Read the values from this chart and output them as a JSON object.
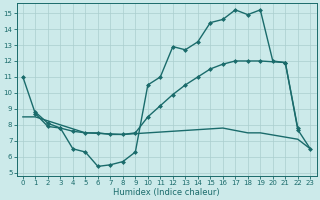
{
  "xlabel": "Humidex (Indice chaleur)",
  "bg_color": "#cceaea",
  "grid_color": "#aacece",
  "line_color": "#1a6b6b",
  "xlim": [
    -0.5,
    23.5
  ],
  "ylim": [
    4.8,
    15.6
  ],
  "xticks": [
    0,
    1,
    2,
    3,
    4,
    5,
    6,
    7,
    8,
    9,
    10,
    11,
    12,
    13,
    14,
    15,
    16,
    17,
    18,
    19,
    20,
    21,
    22,
    23
  ],
  "yticks": [
    5,
    6,
    7,
    8,
    9,
    10,
    11,
    12,
    13,
    14,
    15
  ],
  "curve1_x": [
    0,
    1,
    2,
    3,
    4,
    5,
    6,
    7,
    8,
    9,
    10,
    11,
    12,
    13,
    14,
    15,
    16,
    17,
    18,
    19,
    20,
    21,
    22
  ],
  "curve1_y": [
    11,
    8.7,
    7.9,
    7.8,
    6.5,
    6.3,
    5.4,
    5.5,
    5.7,
    6.3,
    10.5,
    11.0,
    12.9,
    12.7,
    13.2,
    14.4,
    14.6,
    15.2,
    14.9,
    15.2,
    12.0,
    11.9,
    7.8
  ],
  "curve2_x": [
    1,
    2,
    3,
    4,
    5,
    6,
    7,
    8,
    9,
    10,
    11,
    12,
    13,
    14,
    15,
    16,
    17,
    18,
    19,
    21,
    22,
    23
  ],
  "curve2_y": [
    8.8,
    8.1,
    7.8,
    7.6,
    7.5,
    7.5,
    7.4,
    7.4,
    7.5,
    8.5,
    9.2,
    9.9,
    10.5,
    11.0,
    11.5,
    11.8,
    12.0,
    12.0,
    12.0,
    11.9,
    7.7,
    6.5
  ],
  "curve3_x": [
    0,
    1,
    3,
    5,
    8,
    10,
    12,
    14,
    16,
    18,
    19,
    22,
    23
  ],
  "curve3_y": [
    8.5,
    8.5,
    8.0,
    7.5,
    7.4,
    7.5,
    7.6,
    7.7,
    7.8,
    7.5,
    7.5,
    7.1,
    6.5
  ]
}
